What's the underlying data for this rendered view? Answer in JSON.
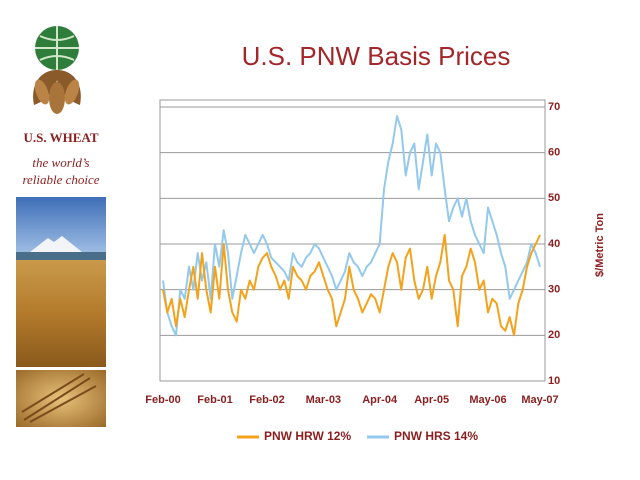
{
  "brand": {
    "name": "U.S. WHEAT",
    "tagline": "the world’s reliable choice"
  },
  "chart_data": {
    "type": "line",
    "title": "U.S. PNW Basis Prices",
    "y_label": "$/Metric Ton",
    "categories": [
      "Feb-00",
      null,
      null,
      null,
      null,
      null,
      null,
      null,
      null,
      null,
      null,
      null,
      "Feb-01",
      null,
      null,
      null,
      null,
      null,
      null,
      null,
      null,
      null,
      null,
      null,
      "Feb-02",
      null,
      null,
      null,
      null,
      null,
      null,
      null,
      null,
      null,
      null,
      null,
      null,
      "Mar-03",
      null,
      null,
      null,
      null,
      null,
      null,
      null,
      null,
      null,
      null,
      null,
      null,
      "Apr-04",
      null,
      null,
      null,
      null,
      null,
      null,
      null,
      null,
      null,
      null,
      null,
      "Apr-05",
      null,
      null,
      null,
      null,
      null,
      null,
      null,
      null,
      null,
      null,
      null,
      null,
      "May-06",
      null,
      null,
      null,
      null,
      null,
      null,
      null,
      null,
      null,
      null,
      null,
      "May-07"
    ],
    "series": [
      {
        "name": "PNW HRW 12%",
        "color": "#f3a21c",
        "values": [
          30,
          25,
          28,
          22,
          28,
          24,
          30,
          35,
          28,
          38,
          30,
          25,
          35,
          28,
          40,
          30,
          25,
          23,
          30,
          28,
          32,
          30,
          35,
          37,
          38,
          35,
          33,
          30,
          32,
          28,
          35,
          33,
          32,
          30,
          33,
          34,
          36,
          33,
          30,
          28,
          22,
          25,
          28,
          35,
          30,
          28,
          25,
          27,
          29,
          28,
          25,
          30,
          35,
          38,
          36,
          30,
          37,
          39,
          32,
          28,
          30,
          35,
          28,
          33,
          36,
          42,
          32,
          30,
          22,
          33,
          35,
          39,
          36,
          30,
          32,
          25,
          28,
          27,
          22,
          21,
          24,
          20,
          27,
          30,
          35,
          38,
          40,
          42
        ]
      },
      {
        "name": "PNW HRS 14%",
        "color": "#93c9ec",
        "values": [
          32,
          25,
          22,
          20,
          30,
          28,
          35,
          30,
          38,
          32,
          36,
          28,
          40,
          35,
          43,
          38,
          28,
          33,
          38,
          42,
          40,
          38,
          40,
          42,
          40,
          37,
          36,
          35,
          34,
          32,
          38,
          36,
          35,
          37,
          38,
          40,
          39,
          37,
          35,
          33,
          30,
          32,
          34,
          38,
          36,
          35,
          33,
          35,
          36,
          38,
          40,
          52,
          58,
          62,
          68,
          65,
          55,
          60,
          62,
          52,
          58,
          64,
          55,
          62,
          60,
          52,
          45,
          48,
          50,
          46,
          50,
          45,
          42,
          40,
          38,
          48,
          45,
          42,
          38,
          35,
          28,
          30,
          32,
          34,
          36,
          40,
          38,
          35
        ]
      }
    ],
    "ylim": [
      10,
      70
    ],
    "yticks": [
      10,
      20,
      30,
      40,
      50,
      60,
      70
    ],
    "y_axis_side": "right",
    "grid": true,
    "legend": "bottom"
  }
}
